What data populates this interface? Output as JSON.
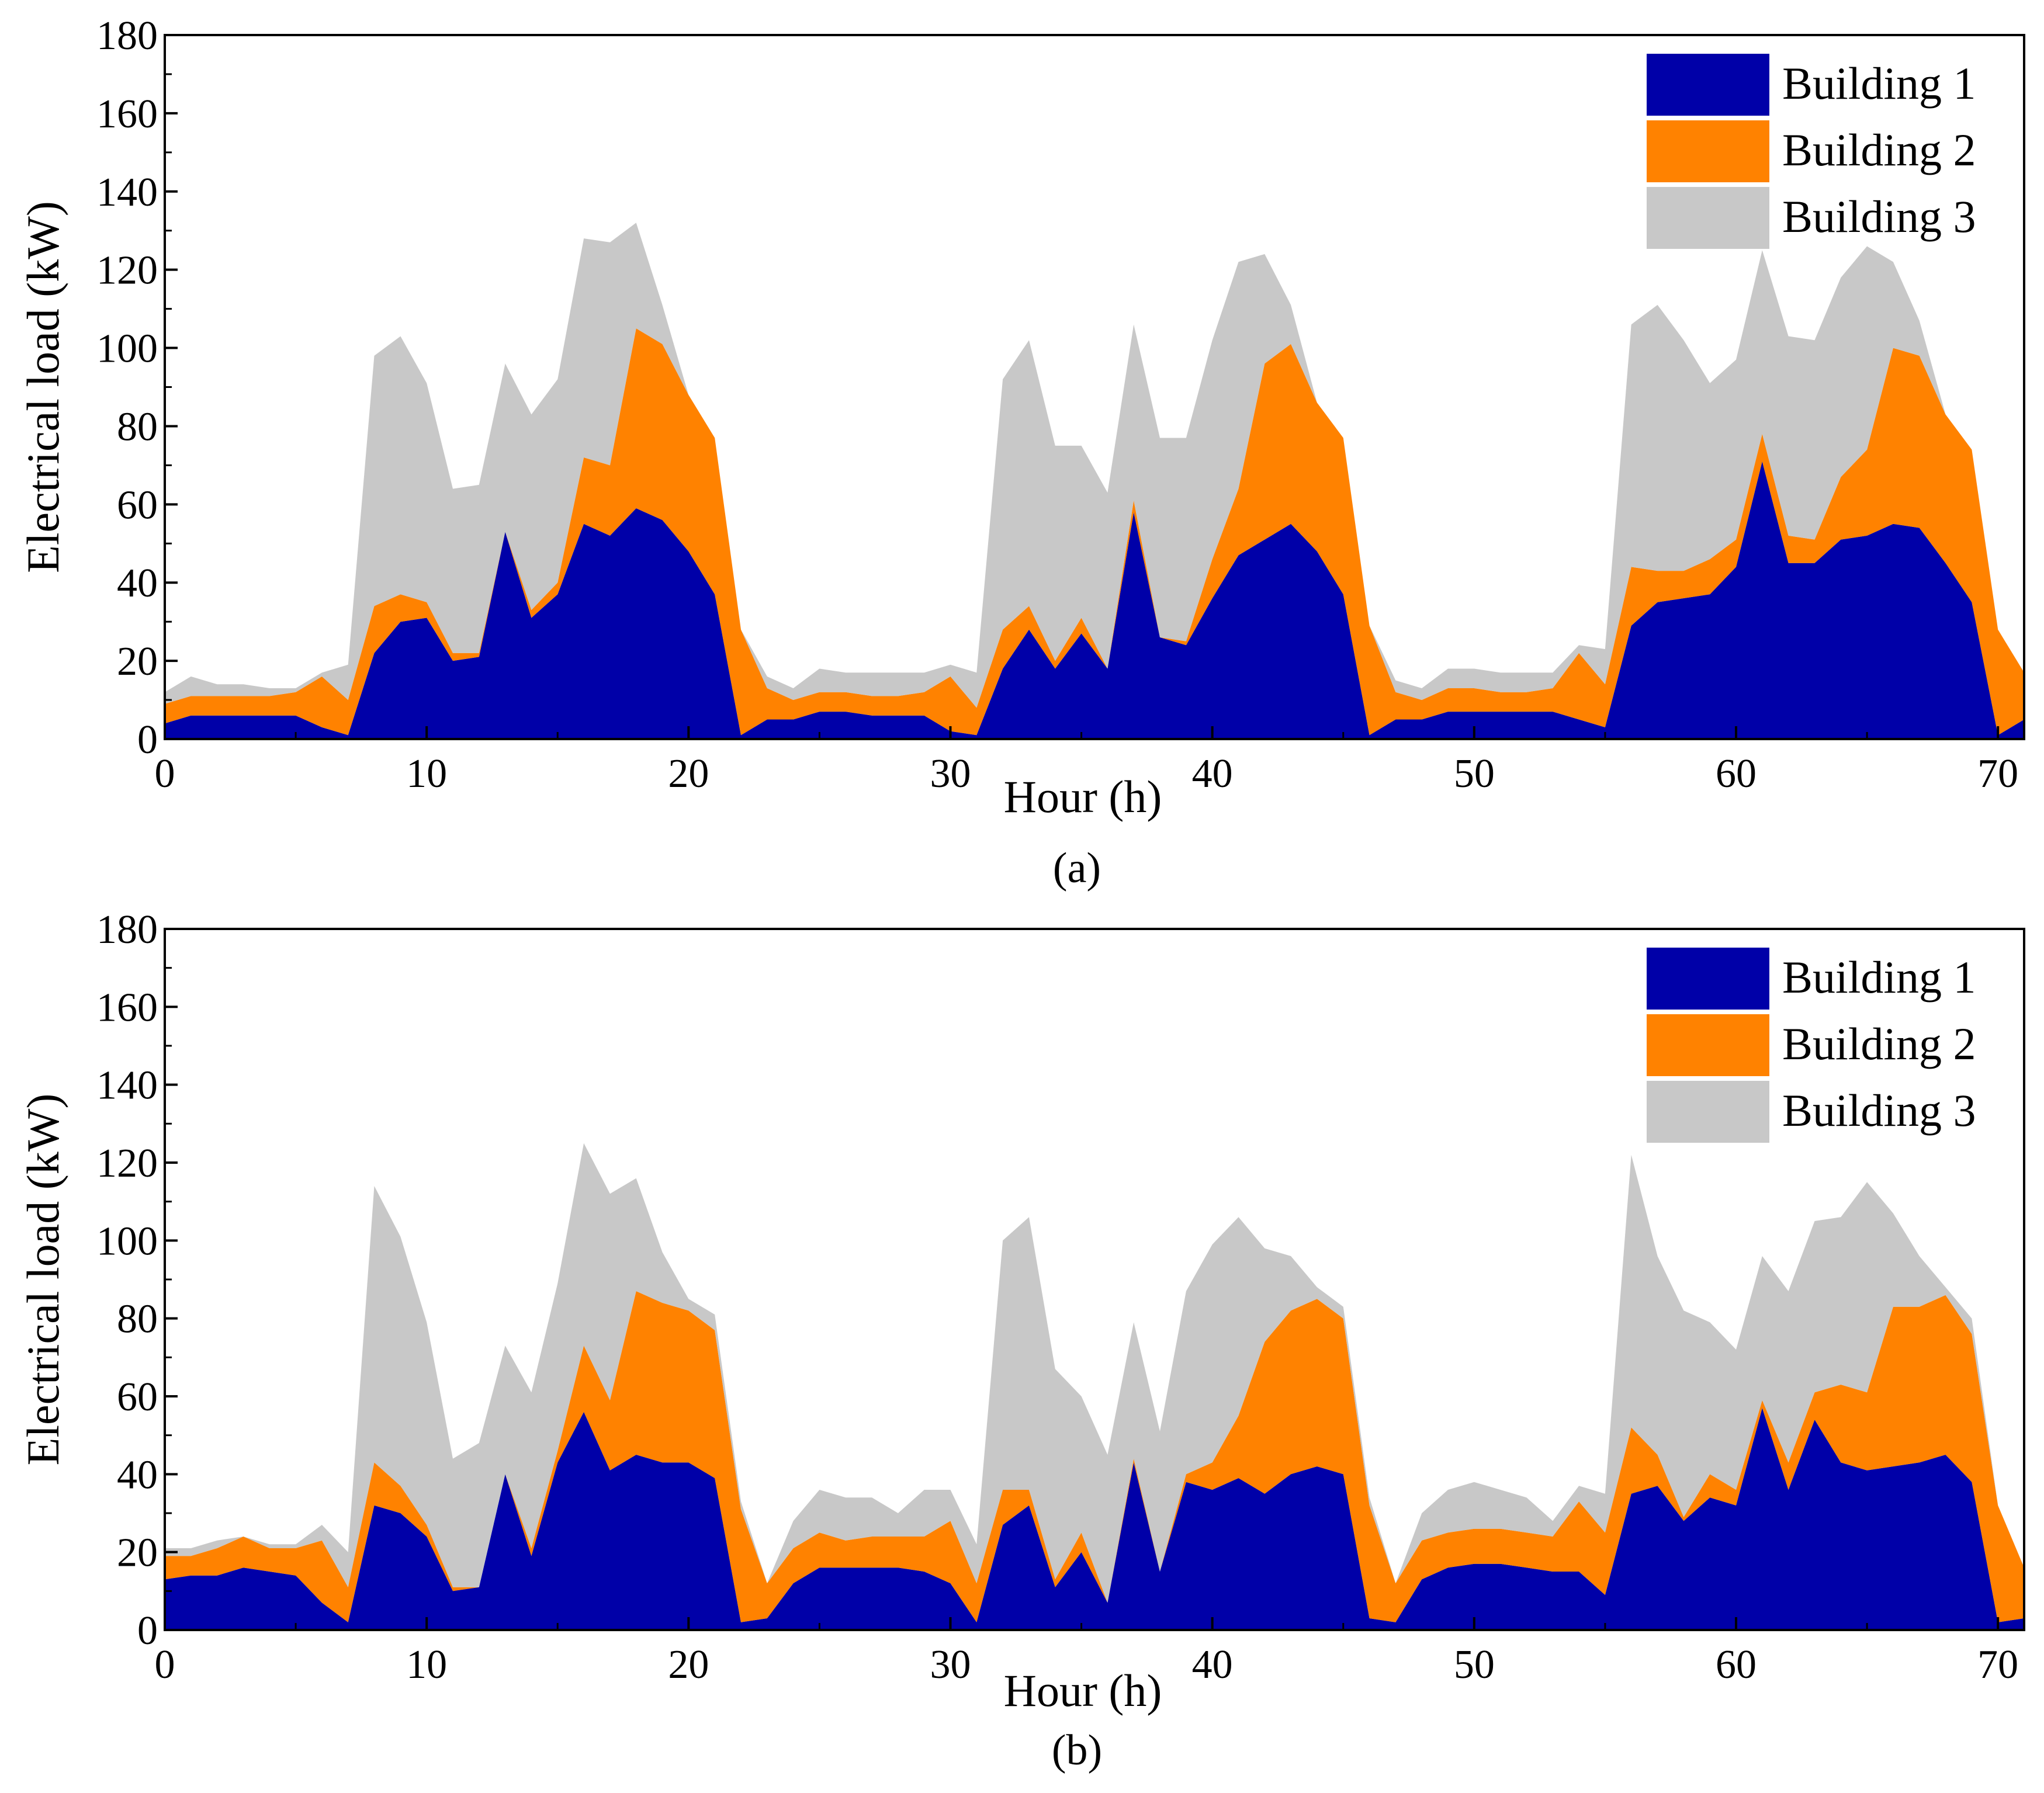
{
  "colors": {
    "building1": "#0000a8",
    "building2": "#ff8200",
    "building3": "#c8c8c8"
  },
  "chart_data": [
    {
      "type": "area",
      "stacked": true,
      "panel_label": "(a)",
      "panel_letter": "a",
      "xlabel": "Hour (h)",
      "ylabel": "Electrical load (kW)",
      "xlim": [
        0,
        71
      ],
      "ylim": [
        0,
        180
      ],
      "xticks": [
        0,
        10,
        20,
        30,
        40,
        50,
        60,
        70
      ],
      "yticks": [
        0,
        20,
        40,
        60,
        80,
        100,
        120,
        140,
        160,
        180
      ],
      "legend_position": "top-right",
      "x": [
        0,
        1,
        2,
        3,
        4,
        5,
        6,
        7,
        8,
        9,
        10,
        11,
        12,
        13,
        14,
        15,
        16,
        17,
        18,
        19,
        20,
        21,
        22,
        23,
        24,
        25,
        26,
        27,
        28,
        29,
        30,
        31,
        32,
        33,
        34,
        35,
        36,
        37,
        38,
        39,
        40,
        41,
        42,
        43,
        44,
        45,
        46,
        47,
        48,
        49,
        50,
        51,
        52,
        53,
        54,
        55,
        56,
        57,
        58,
        59,
        60,
        61,
        62,
        63,
        64,
        65,
        66,
        67,
        68,
        69,
        70,
        71
      ],
      "series": [
        {
          "name": "Building 1",
          "values": [
            4,
            6,
            6,
            6,
            6,
            6,
            3,
            1,
            22,
            30,
            31,
            20,
            21,
            53,
            31,
            37,
            55,
            52,
            59,
            56,
            48,
            37,
            1,
            5,
            5,
            7,
            7,
            6,
            6,
            6,
            2,
            1,
            18,
            28,
            18,
            27,
            18,
            58,
            26,
            24,
            36,
            47,
            51,
            55,
            48,
            37,
            1,
            5,
            5,
            7,
            7,
            7,
            7,
            7,
            5,
            3,
            29,
            35,
            36,
            37,
            44,
            71,
            45,
            45,
            51,
            52,
            55,
            54,
            45,
            35,
            1,
            5
          ]
        },
        {
          "name": "Building 2",
          "values": [
            5,
            5,
            5,
            5,
            5,
            6,
            13,
            9,
            12,
            7,
            4,
            2,
            1,
            0,
            2,
            3,
            17,
            18,
            46,
            45,
            40,
            40,
            27,
            8,
            5,
            5,
            5,
            5,
            5,
            6,
            14,
            7,
            10,
            6,
            2,
            4,
            0,
            3,
            0,
            1,
            10,
            17,
            45,
            46,
            38,
            40,
            28,
            7,
            5,
            6,
            6,
            5,
            5,
            6,
            17,
            11,
            15,
            8,
            7,
            9,
            7,
            7,
            7,
            6,
            16,
            22,
            45,
            44,
            38,
            39,
            27,
            12
          ]
        },
        {
          "name": "Building 3",
          "values": [
            3,
            5,
            3,
            3,
            2,
            1,
            1,
            9,
            64,
            66,
            56,
            42,
            43,
            43,
            50,
            52,
            56,
            57,
            27,
            10,
            0,
            0,
            0,
            3,
            3,
            6,
            5,
            6,
            6,
            5,
            3,
            9,
            64,
            68,
            55,
            44,
            45,
            45,
            51,
            52,
            56,
            58,
            28,
            10,
            0,
            0,
            0,
            3,
            3,
            5,
            5,
            5,
            5,
            4,
            2,
            9,
            62,
            68,
            59,
            45,
            46,
            47,
            51,
            51,
            51,
            52,
            22,
            9,
            0,
            0,
            0,
            0
          ]
        }
      ]
    },
    {
      "type": "area",
      "stacked": true,
      "panel_label": "(b)",
      "panel_letter": "b",
      "xlabel": "Hour (h)",
      "ylabel": "Electrical load (kW)",
      "xlim": [
        0,
        71
      ],
      "ylim": [
        0,
        180
      ],
      "xticks": [
        0,
        10,
        20,
        30,
        40,
        50,
        60,
        70
      ],
      "yticks": [
        0,
        20,
        40,
        60,
        80,
        100,
        120,
        140,
        160,
        180
      ],
      "legend_position": "top-right",
      "x": [
        0,
        1,
        2,
        3,
        4,
        5,
        6,
        7,
        8,
        9,
        10,
        11,
        12,
        13,
        14,
        15,
        16,
        17,
        18,
        19,
        20,
        21,
        22,
        23,
        24,
        25,
        26,
        27,
        28,
        29,
        30,
        31,
        32,
        33,
        34,
        35,
        36,
        37,
        38,
        39,
        40,
        41,
        42,
        43,
        44,
        45,
        46,
        47,
        48,
        49,
        50,
        51,
        52,
        53,
        54,
        55,
        56,
        57,
        58,
        59,
        60,
        61,
        62,
        63,
        64,
        65,
        66,
        67,
        68,
        69,
        70,
        71
      ],
      "series": [
        {
          "name": "Building 1",
          "values": [
            13,
            14,
            14,
            16,
            15,
            14,
            7,
            2,
            32,
            30,
            24,
            10,
            11,
            40,
            19,
            43,
            56,
            41,
            45,
            43,
            43,
            39,
            2,
            3,
            12,
            16,
            16,
            16,
            16,
            15,
            12,
            2,
            27,
            32,
            11,
            20,
            7,
            43,
            15,
            38,
            36,
            39,
            35,
            40,
            42,
            40,
            3,
            2,
            13,
            16,
            17,
            17,
            16,
            15,
            15,
            9,
            35,
            37,
            28,
            34,
            32,
            57,
            36,
            54,
            43,
            41,
            42,
            43,
            45,
            38,
            2,
            3
          ]
        },
        {
          "name": "Building 2",
          "values": [
            6,
            5,
            7,
            8,
            6,
            7,
            16,
            9,
            11,
            7,
            3,
            1,
            0,
            0,
            2,
            3,
            17,
            18,
            42,
            41,
            39,
            38,
            29,
            9,
            9,
            9,
            7,
            8,
            8,
            9,
            16,
            10,
            9,
            4,
            2,
            5,
            0,
            1,
            0,
            2,
            7,
            16,
            39,
            42,
            43,
            40,
            29,
            10,
            10,
            9,
            9,
            9,
            9,
            9,
            18,
            16,
            17,
            8,
            1,
            6,
            4,
            2,
            7,
            7,
            20,
            20,
            41,
            40,
            41,
            38,
            30,
            13
          ]
        },
        {
          "name": "Building 3",
          "values": [
            2,
            2,
            2,
            0,
            1,
            1,
            4,
            9,
            71,
            64,
            52,
            33,
            37,
            33,
            40,
            43,
            52,
            53,
            29,
            13,
            3,
            4,
            2,
            0,
            7,
            11,
            11,
            10,
            6,
            12,
            8,
            10,
            64,
            70,
            54,
            35,
            38,
            35,
            36,
            47,
            56,
            51,
            24,
            14,
            3,
            3,
            2,
            0,
            7,
            11,
            12,
            10,
            9,
            4,
            4,
            10,
            70,
            51,
            53,
            39,
            36,
            37,
            44,
            44,
            43,
            54,
            24,
            13,
            2,
            4,
            0,
            0
          ]
        }
      ]
    }
  ]
}
